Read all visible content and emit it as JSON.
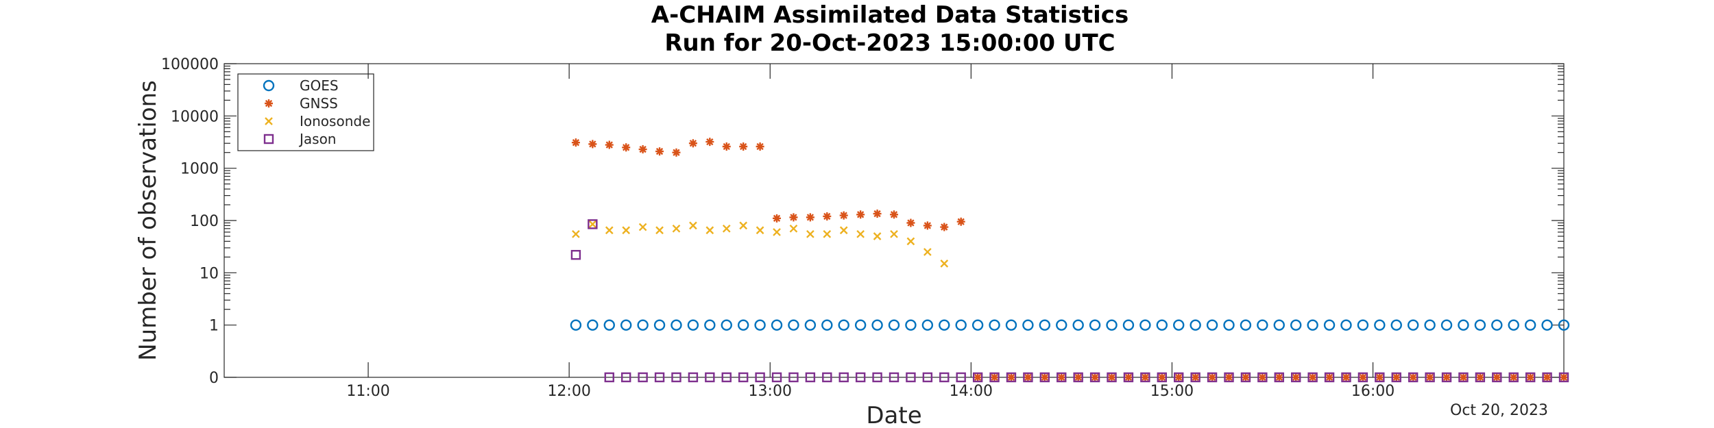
{
  "chart_data": {
    "type": "scatter",
    "title": [
      "A-CHAIM Assimilated Data Statistics",
      "Run for 20-Oct-2023 15:00:00 UTC"
    ],
    "xlabel": "Date",
    "ylabel": "Number of observations",
    "date_label": "Oct 20, 2023",
    "x_scale": "time",
    "y_scale": "log",
    "xlim": [
      "10:17",
      "16:57"
    ],
    "ylim": [
      0,
      100000
    ],
    "x_ticks": [
      "11:00",
      "12:00",
      "13:00",
      "14:00",
      "15:00",
      "16:00"
    ],
    "y_ticks": [
      "0",
      "1",
      "10",
      "100",
      "1000",
      "10000",
      "100000"
    ],
    "grid": false,
    "legend": "top-left",
    "series": [
      {
        "name": "GOES",
        "marker": "circle",
        "color": "#0072BD",
        "x": [
          "12:02",
          "12:07",
          "12:12",
          "12:17",
          "12:22",
          "12:27",
          "12:32",
          "12:37",
          "12:42",
          "12:47",
          "12:52",
          "12:57",
          "13:02",
          "13:07",
          "13:12",
          "13:17",
          "13:22",
          "13:27",
          "13:32",
          "13:37",
          "13:42",
          "13:47",
          "13:52",
          "13:57",
          "14:02",
          "14:07",
          "14:12",
          "14:17",
          "14:22",
          "14:27",
          "14:32",
          "14:37",
          "14:42",
          "14:47",
          "14:52",
          "14:57",
          "15:02",
          "15:07",
          "15:12",
          "15:17",
          "15:22",
          "15:27",
          "15:32",
          "15:37",
          "15:42",
          "15:47",
          "15:52",
          "15:57",
          "16:02",
          "16:07",
          "16:12",
          "16:17",
          "16:22",
          "16:27",
          "16:32",
          "16:37",
          "16:42",
          "16:47",
          "16:52",
          "16:57"
        ],
        "y": [
          1,
          1,
          1,
          1,
          1,
          1,
          1,
          1,
          1,
          1,
          1,
          1,
          1,
          1,
          1,
          1,
          1,
          1,
          1,
          1,
          1,
          1,
          1,
          1,
          1,
          1,
          1,
          1,
          1,
          1,
          1,
          1,
          1,
          1,
          1,
          1,
          1,
          1,
          1,
          1,
          1,
          1,
          1,
          1,
          1,
          1,
          1,
          1,
          1,
          1,
          1,
          1,
          1,
          1,
          1,
          1,
          1,
          1,
          1,
          1
        ]
      },
      {
        "name": "GNSS",
        "marker": "asterisk",
        "color": "#D95319",
        "x": [
          "12:02",
          "12:07",
          "12:12",
          "12:17",
          "12:22",
          "12:27",
          "12:32",
          "12:37",
          "12:42",
          "12:47",
          "12:52",
          "12:57",
          "13:02",
          "13:07",
          "13:12",
          "13:17",
          "13:22",
          "13:27",
          "13:32",
          "13:37",
          "13:42",
          "13:47",
          "13:52",
          "13:57",
          "14:02",
          "14:07",
          "14:12",
          "14:17",
          "14:22",
          "14:27",
          "14:32",
          "14:37",
          "14:42",
          "14:47",
          "14:52",
          "14:57",
          "15:02",
          "15:07",
          "15:12",
          "15:17",
          "15:22",
          "15:27",
          "15:32",
          "15:37",
          "15:42",
          "15:47",
          "15:52",
          "15:57",
          "16:02",
          "16:07",
          "16:12",
          "16:17",
          "16:22",
          "16:27",
          "16:32",
          "16:37",
          "16:42",
          "16:47",
          "16:52",
          "16:57"
        ],
        "y": [
          3100,
          2900,
          2800,
          2500,
          2300,
          2100,
          2000,
          3000,
          3200,
          2600,
          2600,
          2600,
          110,
          115,
          115,
          120,
          125,
          130,
          135,
          130,
          90,
          80,
          75,
          95,
          0,
          0,
          0,
          0,
          0,
          0,
          0,
          0,
          0,
          0,
          0,
          0,
          0,
          0,
          0,
          0,
          0,
          0,
          0,
          0,
          0,
          0,
          0,
          0,
          0,
          0,
          0,
          0,
          0,
          0,
          0,
          0,
          0,
          0,
          0,
          0
        ]
      },
      {
        "name": "Ionosonde",
        "marker": "x",
        "color": "#EDB120",
        "x": [
          "12:02",
          "12:07",
          "12:12",
          "12:17",
          "12:22",
          "12:27",
          "12:32",
          "12:37",
          "12:42",
          "12:47",
          "12:52",
          "12:57",
          "13:02",
          "13:07",
          "13:12",
          "13:17",
          "13:22",
          "13:27",
          "13:32",
          "13:37",
          "13:42",
          "13:47",
          "13:52"
        ],
        "y": [
          55,
          85,
          65,
          65,
          75,
          65,
          70,
          80,
          65,
          70,
          80,
          65,
          60,
          70,
          55,
          55,
          65,
          55,
          50,
          55,
          40,
          25,
          15
        ]
      },
      {
        "name": "Jason",
        "marker": "square",
        "color": "#7E2F8E",
        "x": [
          "12:02",
          "12:07",
          "12:12",
          "12:17",
          "12:22",
          "12:27",
          "12:32",
          "12:37",
          "12:42",
          "12:47",
          "12:52",
          "12:57",
          "13:02",
          "13:07",
          "13:12",
          "13:17",
          "13:22",
          "13:27",
          "13:32",
          "13:37",
          "13:42",
          "13:47",
          "13:52",
          "13:57",
          "14:02",
          "14:07",
          "14:12",
          "14:17",
          "14:22",
          "14:27",
          "14:32",
          "14:37",
          "14:42",
          "14:47",
          "14:52",
          "14:57",
          "15:02",
          "15:07",
          "15:12",
          "15:17",
          "15:22",
          "15:27",
          "15:32",
          "15:37",
          "15:42",
          "15:47",
          "15:52",
          "15:57",
          "16:02",
          "16:07",
          "16:12",
          "16:17",
          "16:22",
          "16:27",
          "16:32",
          "16:37",
          "16:42",
          "16:47",
          "16:52",
          "16:57"
        ],
        "y": [
          22,
          85,
          0,
          0,
          0,
          0,
          0,
          0,
          0,
          0,
          0,
          0,
          0,
          0,
          0,
          0,
          0,
          0,
          0,
          0,
          0,
          0,
          0,
          0,
          0,
          0,
          0,
          0,
          0,
          0,
          0,
          0,
          0,
          0,
          0,
          0,
          0,
          0,
          0,
          0,
          0,
          0,
          0,
          0,
          0,
          0,
          0,
          0,
          0,
          0,
          0,
          0,
          0,
          0,
          0,
          0,
          0,
          0,
          0,
          0
        ]
      }
    ]
  }
}
